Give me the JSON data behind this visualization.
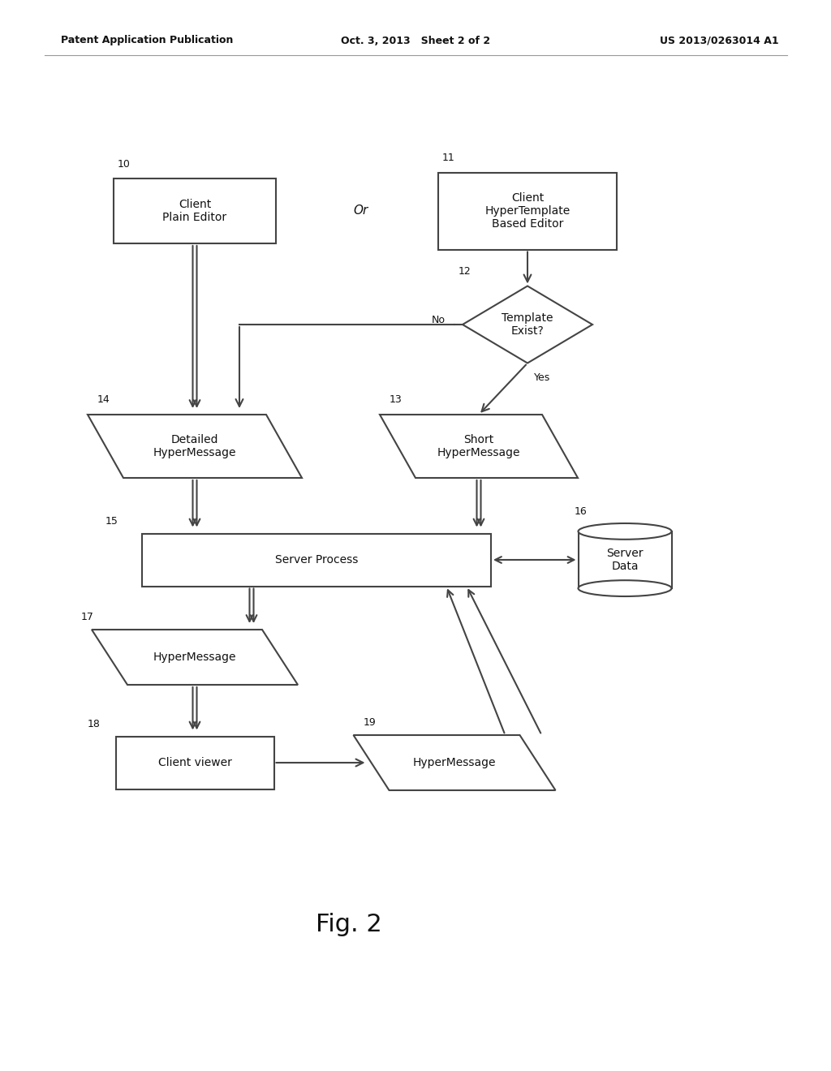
{
  "bg_color": "#ffffff",
  "header_left": "Patent Application Publication",
  "header_mid": "Oct. 3, 2013   Sheet 2 of 2",
  "header_right": "US 2013/0263014 A1",
  "fig_label": "Fig. 2",
  "line_color": "#444444",
  "text_color": "#111111",
  "font_size_label": 10,
  "font_size_header": 9,
  "font_size_id": 9,
  "font_size_fig": 22,
  "font_size_or": 11
}
